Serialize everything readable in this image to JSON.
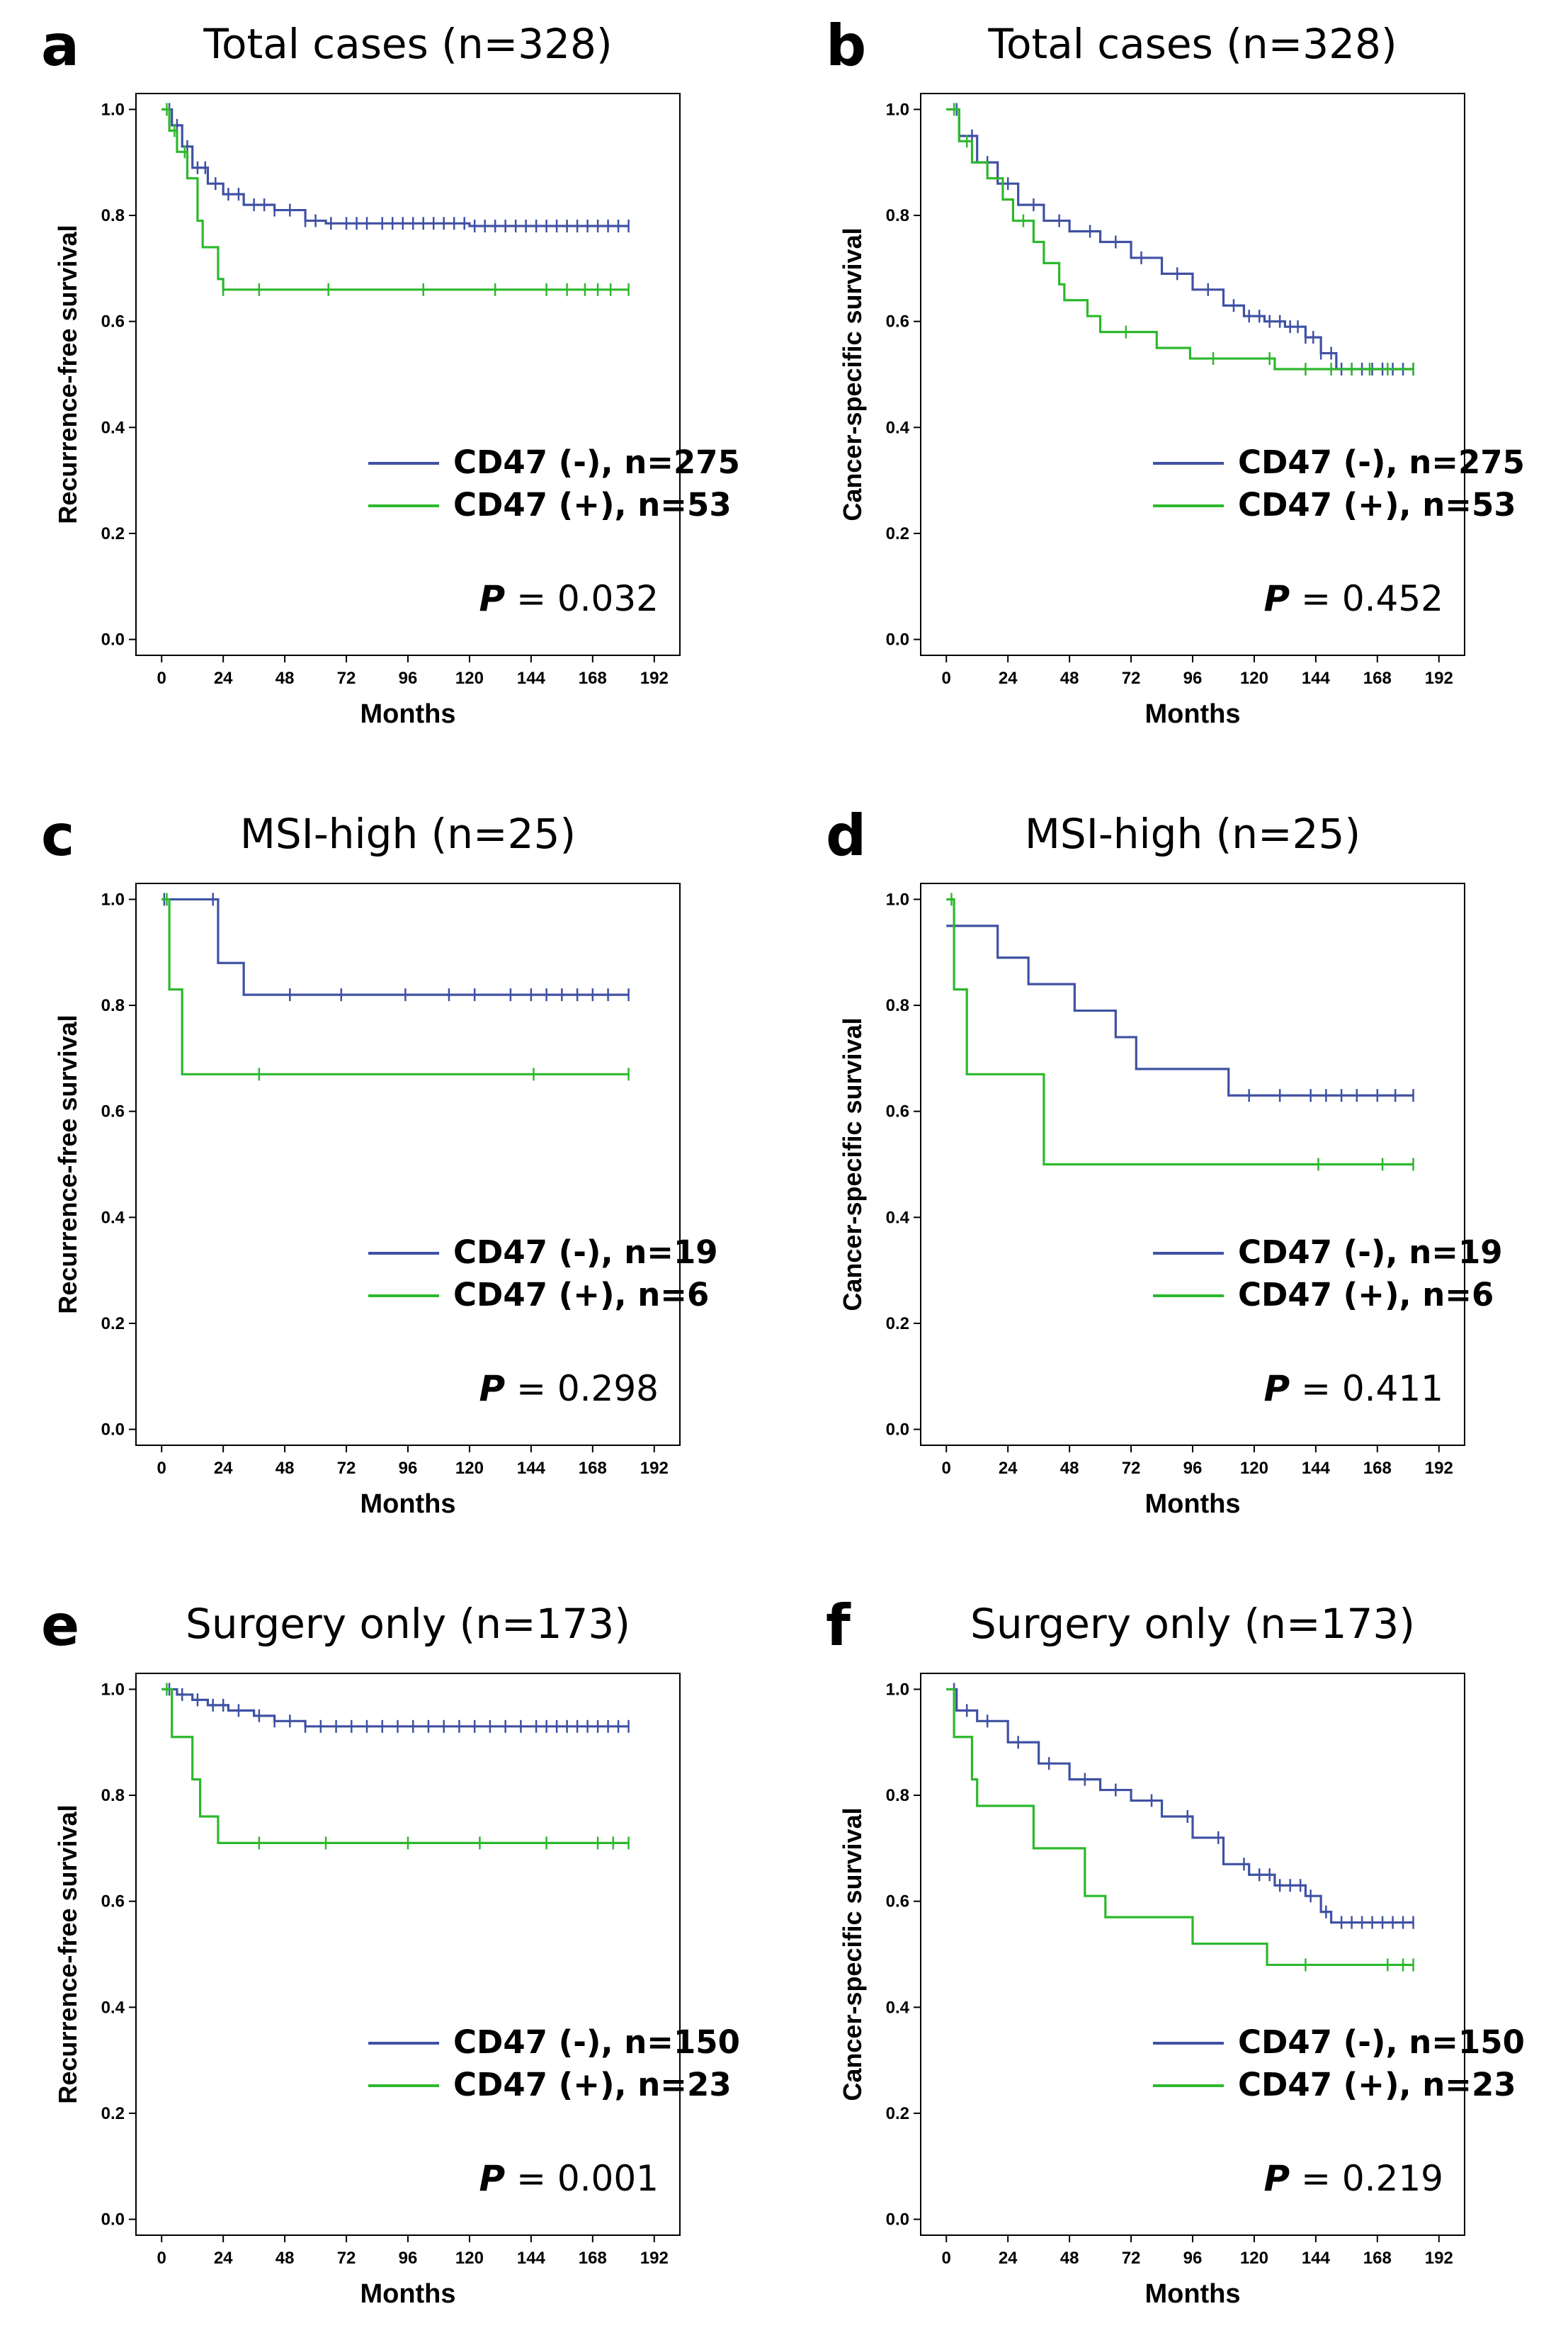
{
  "colors": {
    "cd47_neg": "#3F51A3",
    "cd47_pos": "#2DB82D",
    "axis": "#000000"
  },
  "chart_data": [
    {
      "type": "line",
      "panel": "a",
      "title": "Total cases (n=328)",
      "xlabel": "Months",
      "ylabel": "Recurrence-free survival",
      "xticks": [
        0,
        24,
        48,
        72,
        96,
        120,
        144,
        168,
        192
      ],
      "yticks": [
        0.0,
        0.2,
        0.4,
        0.6,
        0.8,
        1.0
      ],
      "xlim": [
        -10,
        202
      ],
      "ylim": [
        -0.03,
        1.03
      ],
      "p_label": "P",
      "p_value": "0.032",
      "series": [
        {
          "name": "CD47 (-), n=275",
          "color": "#3F51A3",
          "steps": [
            [
              0,
              1.0
            ],
            [
              4,
              0.97
            ],
            [
              8,
              0.93
            ],
            [
              12,
              0.89
            ],
            [
              18,
              0.86
            ],
            [
              24,
              0.84
            ],
            [
              32,
              0.82
            ],
            [
              44,
              0.81
            ],
            [
              56,
              0.79
            ],
            [
              64,
              0.785
            ],
            [
              120,
              0.78
            ],
            [
              182,
              0.78
            ]
          ],
          "censor": [
            3,
            6,
            10,
            14,
            17,
            21,
            26,
            30,
            36,
            40,
            44,
            50,
            56,
            60,
            66,
            72,
            76,
            80,
            86,
            90,
            94,
            98,
            102,
            106,
            110,
            114,
            118,
            122,
            126,
            130,
            134,
            138,
            142,
            146,
            150,
            154,
            158,
            162,
            166,
            170,
            174,
            178,
            182
          ]
        },
        {
          "name": "CD47 (+), n=53",
          "color": "#2DB82D",
          "steps": [
            [
              0,
              1.0
            ],
            [
              3,
              0.96
            ],
            [
              6,
              0.92
            ],
            [
              10,
              0.87
            ],
            [
              14,
              0.79
            ],
            [
              16,
              0.74
            ],
            [
              22,
              0.68
            ],
            [
              24,
              0.66
            ],
            [
              182,
              0.66
            ]
          ],
          "censor": [
            2,
            5,
            9,
            24,
            38,
            65,
            102,
            130,
            150,
            158,
            165,
            170,
            175,
            182
          ]
        }
      ]
    },
    {
      "type": "line",
      "panel": "b",
      "title": "Total cases (n=328)",
      "xlabel": "Months",
      "ylabel": "Cancer-specific survival",
      "xticks": [
        0,
        24,
        48,
        72,
        96,
        120,
        144,
        168,
        192
      ],
      "yticks": [
        0.0,
        0.2,
        0.4,
        0.6,
        0.8,
        1.0
      ],
      "xlim": [
        -10,
        202
      ],
      "ylim": [
        -0.03,
        1.03
      ],
      "p_label": "P",
      "p_value": "0.452",
      "series": [
        {
          "name": "CD47 (-), n=275",
          "color": "#3F51A3",
          "steps": [
            [
              0,
              1.0
            ],
            [
              5,
              0.95
            ],
            [
              12,
              0.9
            ],
            [
              20,
              0.86
            ],
            [
              28,
              0.82
            ],
            [
              38,
              0.79
            ],
            [
              48,
              0.77
            ],
            [
              60,
              0.75
            ],
            [
              72,
              0.72
            ],
            [
              84,
              0.69
            ],
            [
              96,
              0.66
            ],
            [
              108,
              0.63
            ],
            [
              116,
              0.61
            ],
            [
              124,
              0.6
            ],
            [
              132,
              0.59
            ],
            [
              140,
              0.57
            ],
            [
              146,
              0.54
            ],
            [
              152,
              0.51
            ],
            [
              182,
              0.51
            ]
          ],
          "censor": [
            4,
            10,
            16,
            24,
            34,
            44,
            56,
            66,
            76,
            90,
            102,
            112,
            118,
            122,
            126,
            130,
            134,
            137,
            140,
            143,
            146,
            150,
            154,
            158,
            162,
            166,
            170,
            174,
            178,
            182
          ]
        },
        {
          "name": "CD47 (+), n=53",
          "color": "#2DB82D",
          "steps": [
            [
              0,
              1.0
            ],
            [
              5,
              0.94
            ],
            [
              10,
              0.9
            ],
            [
              16,
              0.87
            ],
            [
              22,
              0.83
            ],
            [
              26,
              0.79
            ],
            [
              34,
              0.75
            ],
            [
              38,
              0.71
            ],
            [
              44,
              0.67
            ],
            [
              46,
              0.64
            ],
            [
              55,
              0.61
            ],
            [
              60,
              0.58
            ],
            [
              82,
              0.55
            ],
            [
              95,
              0.53
            ],
            [
              128,
              0.51
            ],
            [
              182,
              0.51
            ]
          ],
          "censor": [
            3,
            8,
            30,
            70,
            104,
            126,
            140,
            150,
            158,
            165,
            172,
            182
          ]
        }
      ]
    },
    {
      "type": "line",
      "panel": "c",
      "title": "MSI-high (n=25)",
      "xlabel": "Months",
      "ylabel": "Recurrence-free survival",
      "xticks": [
        0,
        24,
        48,
        72,
        96,
        120,
        144,
        168,
        192
      ],
      "yticks": [
        0.0,
        0.2,
        0.4,
        0.6,
        0.8,
        1.0
      ],
      "xlim": [
        -10,
        202
      ],
      "ylim": [
        -0.03,
        1.03
      ],
      "p_label": "P",
      "p_value": "0.298",
      "series": [
        {
          "name": "CD47 (-), n=19",
          "color": "#3F51A3",
          "steps": [
            [
              0,
              1.0
            ],
            [
              22,
              0.88
            ],
            [
              32,
              0.82
            ],
            [
              182,
              0.82
            ]
          ],
          "censor": [
            1,
            20,
            50,
            70,
            95,
            112,
            122,
            136,
            144,
            150,
            156,
            162,
            168,
            174,
            182
          ]
        },
        {
          "name": "CD47 (+), n=6",
          "color": "#2DB82D",
          "steps": [
            [
              0,
              1.0
            ],
            [
              3,
              0.83
            ],
            [
              8,
              0.67
            ],
            [
              182,
              0.67
            ]
          ],
          "censor": [
            2,
            38,
            145,
            182
          ]
        }
      ]
    },
    {
      "type": "line",
      "panel": "d",
      "title": "MSI-high (n=25)",
      "xlabel": "Months",
      "ylabel": "Cancer-specific survival",
      "xticks": [
        0,
        24,
        48,
        72,
        96,
        120,
        144,
        168,
        192
      ],
      "yticks": [
        0.0,
        0.2,
        0.4,
        0.6,
        0.8,
        1.0
      ],
      "xlim": [
        -10,
        202
      ],
      "ylim": [
        -0.03,
        1.03
      ],
      "p_label": "P",
      "p_value": "0.411",
      "series": [
        {
          "name": "CD47 (-), n=19",
          "color": "#3F51A3",
          "steps": [
            [
              0,
              0.95
            ],
            [
              20,
              0.89
            ],
            [
              32,
              0.84
            ],
            [
              50,
              0.79
            ],
            [
              66,
              0.74
            ],
            [
              74,
              0.68
            ],
            [
              110,
              0.63
            ],
            [
              182,
              0.63
            ]
          ],
          "censor": [
            118,
            130,
            142,
            148,
            154,
            160,
            168,
            175,
            182
          ]
        },
        {
          "name": "CD47 (+), n=6",
          "color": "#2DB82D",
          "steps": [
            [
              0,
              1.0
            ],
            [
              3,
              0.83
            ],
            [
              8,
              0.67
            ],
            [
              38,
              0.5
            ],
            [
              182,
              0.5
            ]
          ],
          "censor": [
            2,
            145,
            170,
            182
          ]
        }
      ]
    },
    {
      "type": "line",
      "panel": "e",
      "title": "Surgery only (n=173)",
      "xlabel": "Months",
      "ylabel": "Recurrence-free survival",
      "xticks": [
        0,
        24,
        48,
        72,
        96,
        120,
        144,
        168,
        192
      ],
      "yticks": [
        0.0,
        0.2,
        0.4,
        0.6,
        0.8,
        1.0
      ],
      "xlim": [
        -10,
        202
      ],
      "ylim": [
        -0.03,
        1.03
      ],
      "p_label": "P",
      "p_value": "0.001",
      "series": [
        {
          "name": "CD47 (-), n=150",
          "color": "#3F51A3",
          "steps": [
            [
              0,
              1.0
            ],
            [
              6,
              0.99
            ],
            [
              12,
              0.98
            ],
            [
              18,
              0.97
            ],
            [
              26,
              0.96
            ],
            [
              36,
              0.95
            ],
            [
              44,
              0.94
            ],
            [
              56,
              0.93
            ],
            [
              182,
              0.93
            ]
          ],
          "censor": [
            3,
            8,
            14,
            20,
            24,
            30,
            38,
            44,
            50,
            56,
            62,
            68,
            74,
            80,
            86,
            92,
            98,
            104,
            110,
            116,
            122,
            128,
            134,
            140,
            146,
            150,
            154,
            158,
            162,
            166,
            170,
            174,
            178,
            182
          ]
        },
        {
          "name": "CD47 (+), n=23",
          "color": "#2DB82D",
          "steps": [
            [
              0,
              1.0
            ],
            [
              4,
              0.91
            ],
            [
              12,
              0.83
            ],
            [
              15,
              0.76
            ],
            [
              22,
              0.71
            ],
            [
              182,
              0.71
            ]
          ],
          "censor": [
            2,
            38,
            64,
            96,
            124,
            150,
            170,
            176,
            182
          ]
        }
      ]
    },
    {
      "type": "line",
      "panel": "f",
      "title": "Surgery only (n=173)",
      "xlabel": "Months",
      "ylabel": "Cancer-specific survival",
      "xticks": [
        0,
        24,
        48,
        72,
        96,
        120,
        144,
        168,
        192
      ],
      "yticks": [
        0.0,
        0.2,
        0.4,
        0.6,
        0.8,
        1.0
      ],
      "xlim": [
        -10,
        202
      ],
      "ylim": [
        -0.03,
        1.03
      ],
      "p_label": "P",
      "p_value": "0.219",
      "series": [
        {
          "name": "CD47 (-), n=150",
          "color": "#3F51A3",
          "steps": [
            [
              0,
              1.0
            ],
            [
              4,
              0.96
            ],
            [
              12,
              0.94
            ],
            [
              24,
              0.9
            ],
            [
              36,
              0.86
            ],
            [
              48,
              0.83
            ],
            [
              60,
              0.81
            ],
            [
              72,
              0.79
            ],
            [
              84,
              0.76
            ],
            [
              96,
              0.72
            ],
            [
              108,
              0.67
            ],
            [
              118,
              0.65
            ],
            [
              128,
              0.63
            ],
            [
              140,
              0.61
            ],
            [
              146,
              0.58
            ],
            [
              150,
              0.56
            ],
            [
              182,
              0.56
            ]
          ],
          "censor": [
            3,
            8,
            16,
            28,
            40,
            54,
            66,
            80,
            94,
            106,
            116,
            122,
            126,
            130,
            134,
            138,
            142,
            148,
            154,
            158,
            162,
            166,
            170,
            174,
            178,
            182
          ]
        },
        {
          "name": "CD47 (+), n=23",
          "color": "#2DB82D",
          "steps": [
            [
              0,
              1.0
            ],
            [
              3,
              0.91
            ],
            [
              10,
              0.83
            ],
            [
              12,
              0.78
            ],
            [
              34,
              0.7
            ],
            [
              54,
              0.61
            ],
            [
              62,
              0.57
            ],
            [
              96,
              0.52
            ],
            [
              125,
              0.48
            ],
            [
              182,
              0.48
            ]
          ],
          "censor": [
            140,
            172,
            178,
            182
          ]
        }
      ]
    }
  ]
}
